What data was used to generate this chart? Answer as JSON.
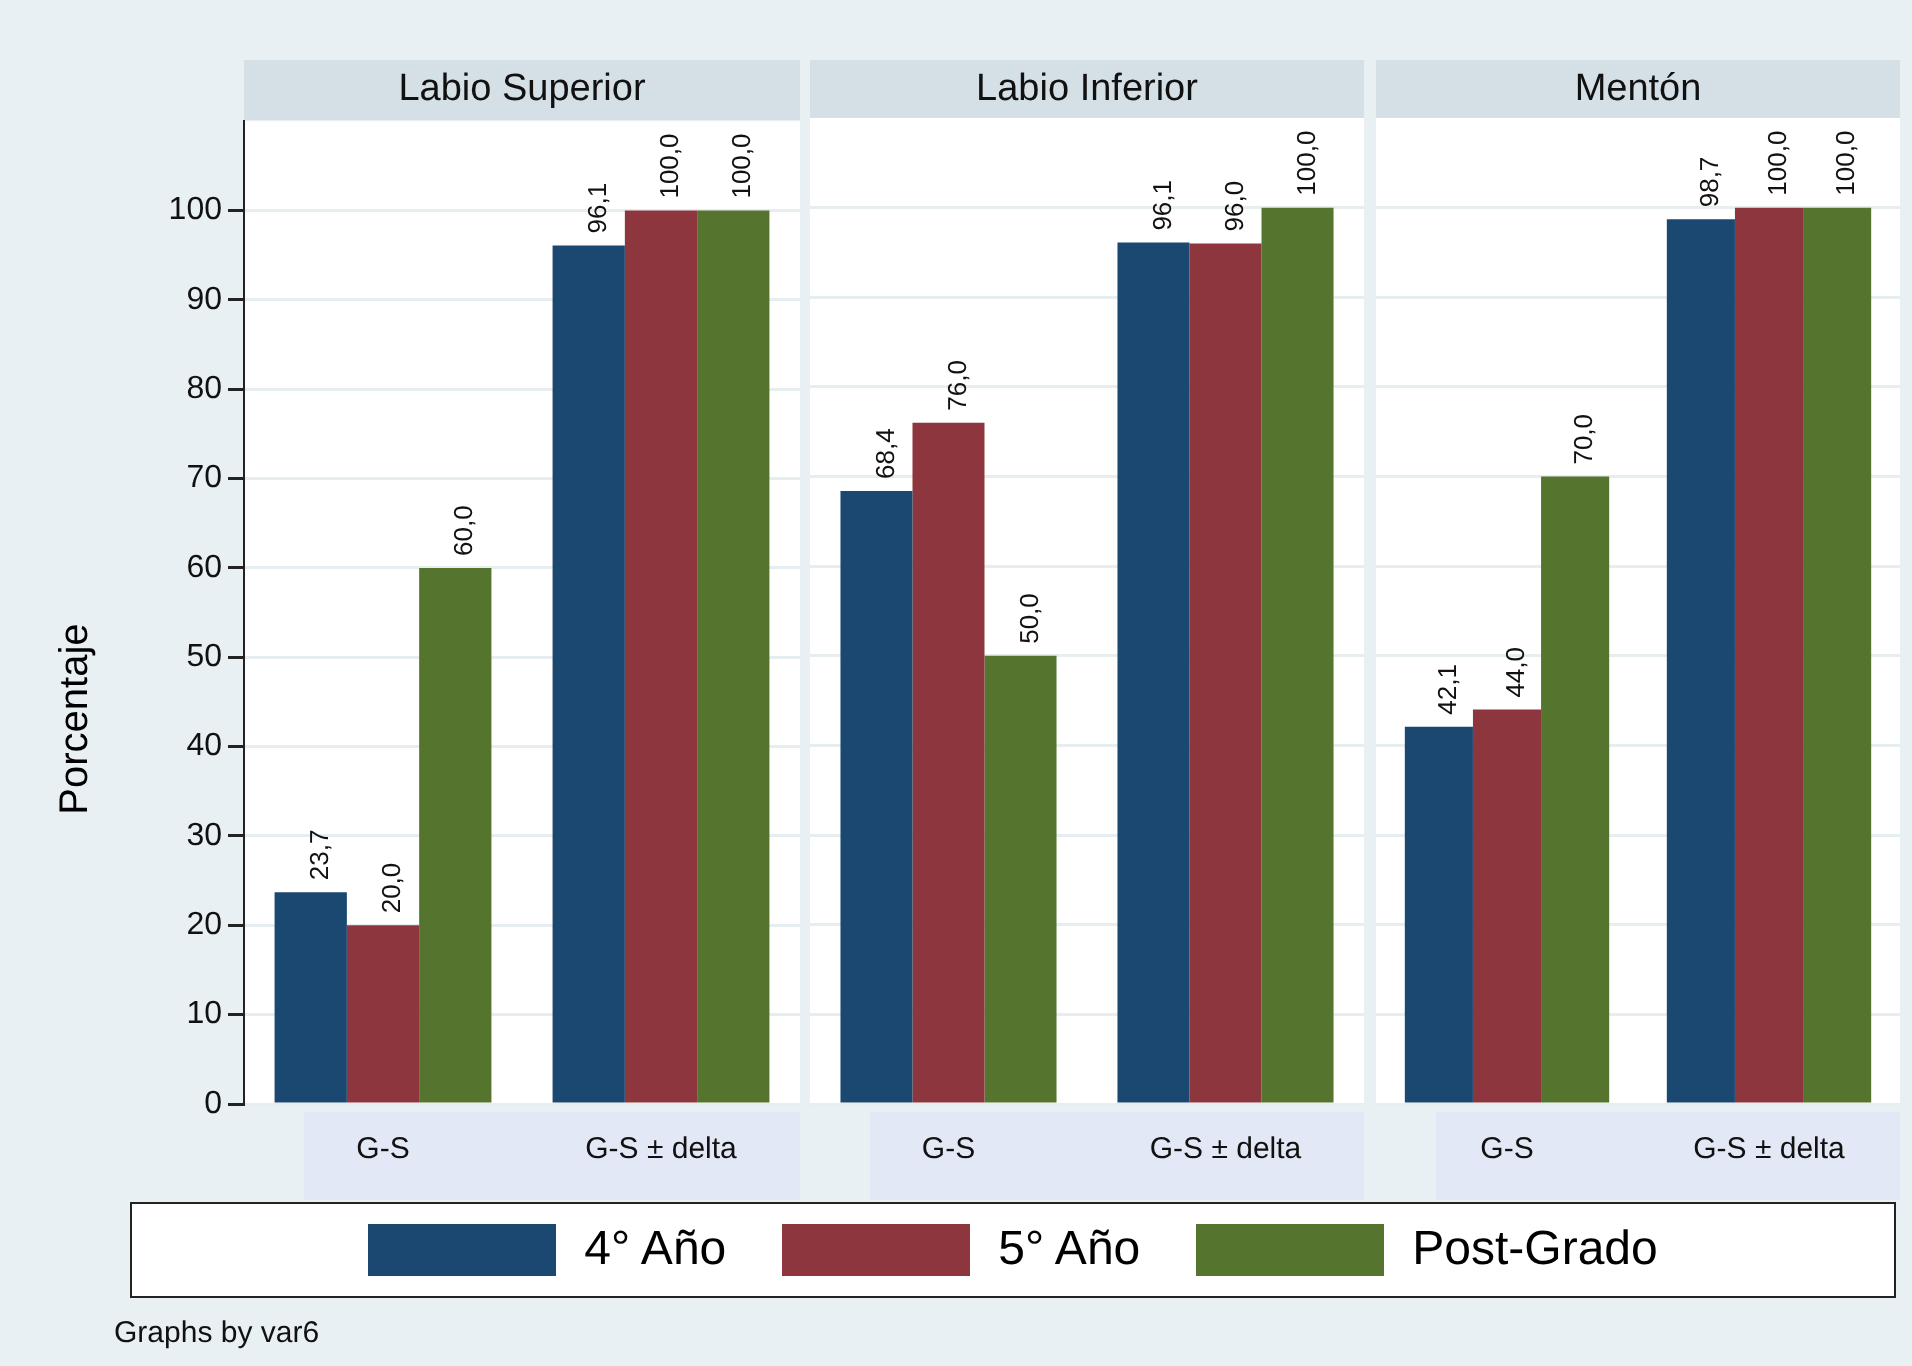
{
  "chart_data": [
    {
      "type": "bar",
      "title": "Labio Superior",
      "ylabel": "Porcentaje",
      "categories": [
        "G-S",
        "G-S ± delta"
      ],
      "ylim": [
        0,
        110
      ],
      "yticks": [
        0,
        10,
        20,
        30,
        40,
        50,
        60,
        70,
        80,
        90,
        100
      ],
      "grid": "y",
      "legend": "bottom",
      "annotations": [
        "Graphs by var6"
      ],
      "series": [
        {
          "name": "4° Año",
          "color": "#1b4870",
          "values": [
            23.7,
            96.1
          ],
          "value_labels": [
            "23,7",
            "96,1"
          ]
        },
        {
          "name": "5° Año",
          "color": "#8e363d",
          "values": [
            20.0,
            100.0
          ],
          "value_labels": [
            "20,0",
            "100,0"
          ]
        },
        {
          "name": "Post-Grado",
          "color": "#55752f",
          "values": [
            60.0,
            100.0
          ],
          "value_labels": [
            "60,0",
            "100,0"
          ]
        }
      ]
    },
    {
      "type": "bar",
      "title": "Labio Inferior",
      "categories": [
        "G-S",
        "G-S ± delta"
      ],
      "ylim": [
        0,
        110
      ],
      "yticks": [
        0,
        10,
        20,
        30,
        40,
        50,
        60,
        70,
        80,
        90,
        100
      ],
      "grid": "y",
      "tick_labels": "x",
      "series": [
        {
          "color": "#1b4870",
          "values": [
            68.4,
            96.1
          ],
          "value_labels": [
            "68,4",
            "96,1"
          ]
        },
        {
          "color": "#8e363d",
          "values": [
            76.0,
            96.0
          ],
          "value_labels": [
            "76,0",
            "96,0"
          ]
        },
        {
          "color": "#55752f",
          "values": [
            50.0,
            100.0
          ],
          "value_labels": [
            "50,0",
            "100,0"
          ]
        }
      ]
    },
    {
      "type": "bar",
      "title": "Mentón",
      "categories": [
        "G-S",
        "G-S ± delta"
      ],
      "ylim": [
        0,
        110
      ],
      "yticks": [
        0,
        10,
        20,
        30,
        40,
        50,
        60,
        70,
        80,
        90,
        100
      ],
      "grid": "y",
      "tick_labels": "x",
      "series": [
        {
          "color": "#1b4870",
          "values": [
            42.1,
            98.7
          ],
          "value_labels": [
            "42,1",
            "98,7"
          ]
        },
        {
          "color": "#8e363d",
          "values": [
            44.0,
            100.0
          ],
          "value_labels": [
            "44,0",
            "100,0"
          ]
        },
        {
          "color": "#55752f",
          "values": [
            70.0,
            100.0
          ],
          "value_labels": [
            "70,0",
            "100,0"
          ]
        }
      ]
    }
  ]
}
